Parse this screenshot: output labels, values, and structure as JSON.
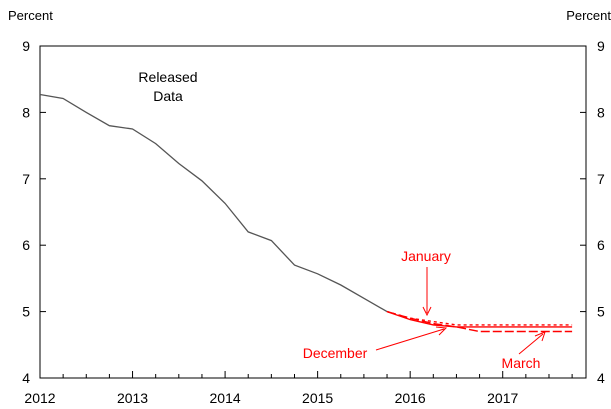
{
  "chart_data": {
    "type": "line",
    "x_unit": "year",
    "xlim": [
      2012,
      2017.9
    ],
    "ylim": [
      4,
      9
    ],
    "xticks": [
      "2012",
      "2013",
      "2014",
      "2015",
      "2016",
      "2017"
    ],
    "yticks": [
      "4",
      "5",
      "6",
      "7",
      "8",
      "9"
    ],
    "ylabel_left": "Percent",
    "ylabel_right": "Percent",
    "grid": false,
    "series": [
      {
        "name": "Released Data",
        "color": "#555555",
        "style": "solid",
        "x": [
          2012.0,
          2012.25,
          2012.5,
          2012.75,
          2013.0,
          2013.25,
          2013.5,
          2013.75,
          2014.0,
          2014.25,
          2014.5,
          2014.75,
          2015.0,
          2015.25,
          2015.5,
          2015.75
        ],
        "y": [
          8.27,
          8.21,
          8.0,
          7.8,
          7.75,
          7.53,
          7.23,
          6.97,
          6.63,
          6.2,
          6.07,
          5.7,
          5.57,
          5.4,
          5.2,
          5.0
        ]
      },
      {
        "name": "January",
        "color": "#ff0000",
        "style": "dashed",
        "x": [
          2015.75,
          2016.0,
          2016.25,
          2016.5,
          2016.75,
          2017.0,
          2017.25,
          2017.5,
          2017.75
        ],
        "y": [
          5.0,
          4.9,
          4.85,
          4.8,
          4.8,
          4.8,
          4.8,
          4.8,
          4.8
        ]
      },
      {
        "name": "December",
        "color": "#ff0000",
        "style": "solid",
        "x": [
          2015.75,
          2016.0,
          2016.25,
          2016.5,
          2016.75,
          2017.0,
          2017.25,
          2017.5,
          2017.75
        ],
        "y": [
          5.0,
          4.88,
          4.8,
          4.77,
          4.77,
          4.77,
          4.77,
          4.77,
          4.77
        ]
      },
      {
        "name": "March",
        "color": "#ff0000",
        "style": "longdash",
        "x": [
          2015.75,
          2016.0,
          2016.25,
          2016.5,
          2016.75,
          2017.0,
          2017.25,
          2017.5,
          2017.75
        ],
        "y": [
          5.0,
          4.9,
          4.82,
          4.77,
          4.7,
          4.7,
          4.7,
          4.7,
          4.7
        ]
      }
    ],
    "annotations": {
      "released": [
        "Released",
        "Data"
      ],
      "january": "January",
      "december": "December",
      "march": "March"
    },
    "colors": {
      "axis": "#000000",
      "forecast": "#ff0000",
      "released": "#555555"
    }
  }
}
